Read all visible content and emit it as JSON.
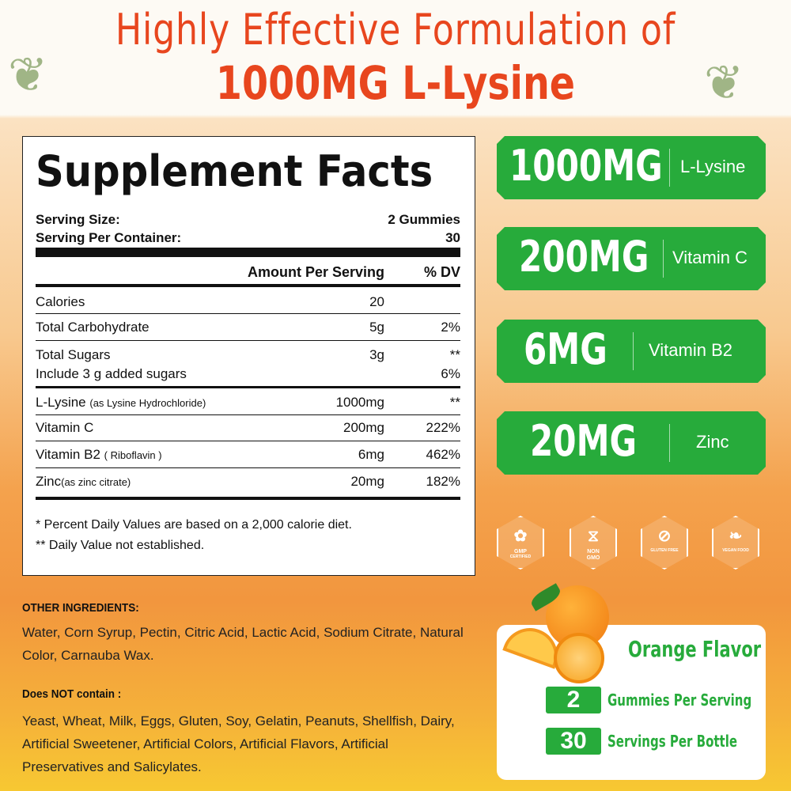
{
  "header": {
    "line1": "Highly Effective Formulation of",
    "line2": "1000MG L-Lysine"
  },
  "facts": {
    "title": "Supplement Facts",
    "serving_size_label": "Serving Size:",
    "serving_size": "2 Gummies",
    "per_container_label": "Serving Per Container:",
    "per_container": "30",
    "col_amount": "Amount Per Serving",
    "col_dv": "% DV",
    "rows": [
      {
        "name": "Calories",
        "sub": "",
        "amount": "20",
        "dv": ""
      },
      {
        "name": "Total Carbohydrate",
        "sub": "",
        "amount": "5g",
        "dv": "2%"
      },
      {
        "name": "Total Sugars",
        "sub": "",
        "amount": "3g",
        "dv": "**"
      },
      {
        "name": "Include 3 g added sugars",
        "sub": "",
        "amount": "",
        "dv": "6%"
      },
      {
        "name": "L-Lysine",
        "sub": "(as Lysine Hydrochloride)",
        "amount": "1000mg",
        "dv": "**"
      },
      {
        "name": "Vitamin C",
        "sub": "",
        "amount": "200mg",
        "dv": "222%"
      },
      {
        "name": "Vitamin B2",
        "sub": "( Riboflavin )",
        "amount": "6mg",
        "dv": "462%"
      },
      {
        "name": "Zinc",
        "sub": "(as zinc citrate)",
        "amount": "20mg",
        "dv": "182%"
      }
    ],
    "foot1": "* Percent Daily Values are based on a 2,000 calorie diet.",
    "foot2": "** Daily Value not established."
  },
  "highlights": [
    {
      "amount": "1000MG",
      "name": "L-Lysine"
    },
    {
      "amount": "200MG",
      "name": "Vitamin C"
    },
    {
      "amount": "6MG",
      "name": "Vitamin B2"
    },
    {
      "amount": "20MG",
      "name": "Zinc"
    }
  ],
  "badges": [
    {
      "icon": "award-icon",
      "l1": "GMP",
      "l2": "CERTIFIED"
    },
    {
      "icon": "dna-icon",
      "l1": "NON",
      "l2": "GMO"
    },
    {
      "icon": "wheat-icon",
      "l1": "",
      "l2": "GLUTEN FREE"
    },
    {
      "icon": "leaf-icon",
      "l1": "",
      "l2": "VEGAN FOOD"
    }
  ],
  "ingredients": {
    "other_title": "OTHER INGREDIENTS:",
    "other": "Water, Corn Syrup, Pectin, Citric Acid, Lactic Acid, Sodium Citrate, Natural Color, Carnauba Wax.",
    "not_title": "Does NOT contain :",
    "not": "Yeast, Wheat, Milk, Eggs, Gluten, Soy, Gelatin, Peanuts, Shellfish, Dairy, Artificial Sweetener, Artificial Colors, Artificial Flavors, Artificial Preservatives and Salicylates."
  },
  "flavor": {
    "title": "Orange Flavor",
    "n1": "2",
    "l1": "Gummies Per Serving",
    "n2": "30",
    "l2": "Servings Per Bottle"
  },
  "colors": {
    "accent": "#e8461e",
    "green": "#27ab3b"
  }
}
